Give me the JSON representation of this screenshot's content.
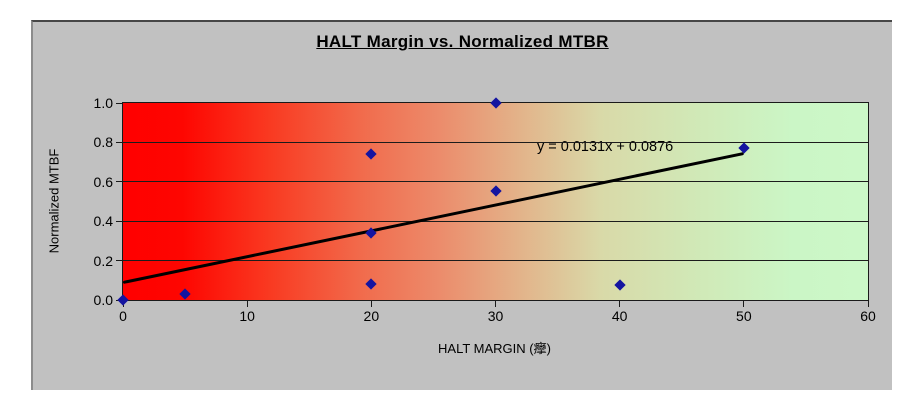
{
  "title": "HALT Margin vs. Normalized MTBR",
  "colors": {
    "chart_background": "#c1c1c1",
    "marker": "#1414a0",
    "trendline": "#000000",
    "gridline": "#1c1c1c",
    "plot_gradient_stops": [
      "#ff0000 0%",
      "#fe0601 8%",
      "#f93b22 20%",
      "#f16b4c 32%",
      "#ec8a6a 42%",
      "#e3b289 53%",
      "#d9d9a8 64%",
      "#d0eab8 78%",
      "#cbf6c6 90%",
      "#ccf8c8 100%"
    ]
  },
  "chart_data": {
    "type": "scatter",
    "title": "HALT Margin vs. Normalized MTBR",
    "xlabel": "HALT MARGIN (癴)",
    "ylabel": "Normalized MTBF",
    "xlim": [
      0,
      60
    ],
    "ylim": [
      0.0,
      1.0
    ],
    "xticks": [
      "0",
      "10",
      "20",
      "30",
      "40",
      "50",
      "60"
    ],
    "xtick_values": [
      0,
      10,
      20,
      30,
      40,
      50,
      60
    ],
    "yticks": [
      "0.0",
      "0.2",
      "0.4",
      "0.6",
      "0.8",
      "1.0"
    ],
    "ytick_values": [
      0.0,
      0.2,
      0.4,
      0.6,
      0.8,
      1.0
    ],
    "grid": true,
    "legend": "none",
    "points": [
      {
        "x": 0,
        "y": 0.0
      },
      {
        "x": 5,
        "y": 0.03
      },
      {
        "x": 20,
        "y": 0.08
      },
      {
        "x": 20,
        "y": 0.34
      },
      {
        "x": 20,
        "y": 0.74
      },
      {
        "x": 30,
        "y": 0.555
      },
      {
        "x": 30,
        "y": 1.0
      },
      {
        "x": 40,
        "y": 0.075
      },
      {
        "x": 50,
        "y": 0.77
      }
    ],
    "trendline": {
      "slope": 0.0131,
      "intercept": 0.0876,
      "x_range": [
        0,
        50
      ],
      "equation": "y = 0.0131x + 0.0876"
    }
  }
}
